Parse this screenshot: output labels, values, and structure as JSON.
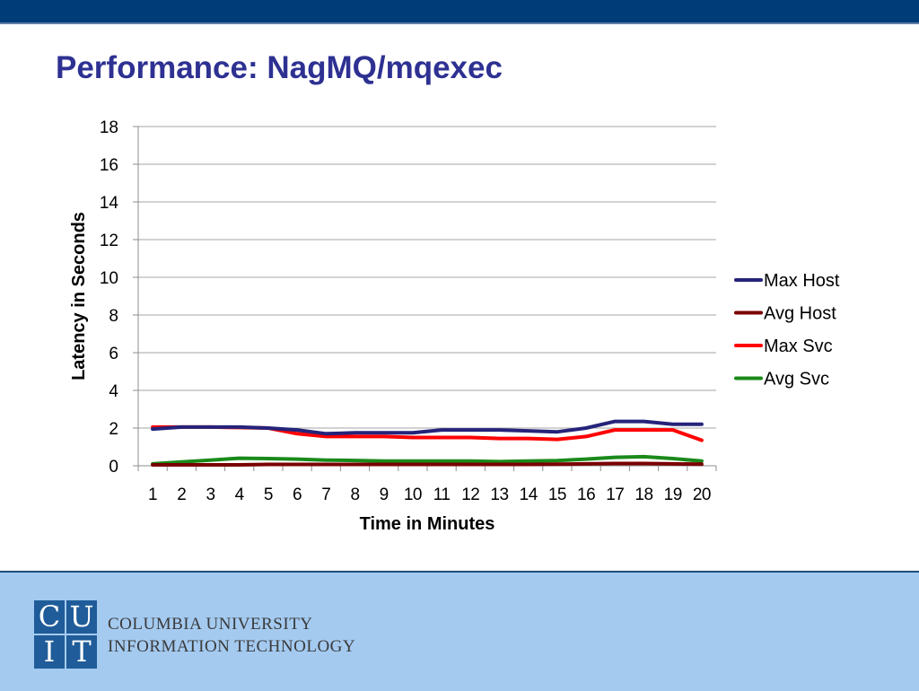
{
  "slide": {
    "title": "Performance: NagMQ/mqexec"
  },
  "footer": {
    "logo_letters": [
      "C",
      "U",
      "I",
      "T"
    ],
    "org_line1": "COLUMBIA UNIVERSITY",
    "org_line2": "INFORMATION TECHNOLOGY"
  },
  "chart_data": {
    "type": "line",
    "xlabel": "Time in Minutes",
    "ylabel": "Latency in Seconds",
    "categories": [
      "1",
      "2",
      "3",
      "4",
      "5",
      "6",
      "7",
      "8",
      "9",
      "10",
      "11",
      "12",
      "13",
      "14",
      "15",
      "16",
      "17",
      "18",
      "19",
      "20"
    ],
    "ylim": [
      0,
      18
    ],
    "yticks": [
      0,
      2,
      4,
      6,
      8,
      10,
      12,
      14,
      16,
      18
    ],
    "grid": true,
    "legend_position": "right",
    "series": [
      {
        "name": "Max Host",
        "color": "#25237a",
        "values": [
          1.95,
          2.05,
          2.05,
          2.05,
          2.0,
          1.9,
          1.7,
          1.75,
          1.75,
          1.75,
          1.9,
          1.9,
          1.9,
          1.85,
          1.8,
          2.0,
          2.35,
          2.35,
          2.2,
          2.2
        ]
      },
      {
        "name": "Avg Host",
        "color": "#7a0000",
        "values": [
          0.05,
          0.05,
          0.05,
          0.05,
          0.07,
          0.07,
          0.07,
          0.07,
          0.07,
          0.07,
          0.07,
          0.07,
          0.07,
          0.07,
          0.08,
          0.1,
          0.12,
          0.12,
          0.1,
          0.08
        ]
      },
      {
        "name": "Max Svc",
        "color": "#ff0000",
        "values": [
          2.05,
          2.05,
          2.05,
          2.03,
          2.0,
          1.7,
          1.55,
          1.55,
          1.55,
          1.5,
          1.5,
          1.5,
          1.45,
          1.45,
          1.4,
          1.55,
          1.9,
          1.9,
          1.9,
          1.35
        ]
      },
      {
        "name": "Avg Svc",
        "color": "#1a8a1a",
        "values": [
          0.1,
          0.2,
          0.3,
          0.4,
          0.38,
          0.35,
          0.3,
          0.28,
          0.25,
          0.25,
          0.25,
          0.25,
          0.22,
          0.25,
          0.27,
          0.35,
          0.45,
          0.48,
          0.38,
          0.25
        ]
      }
    ]
  }
}
